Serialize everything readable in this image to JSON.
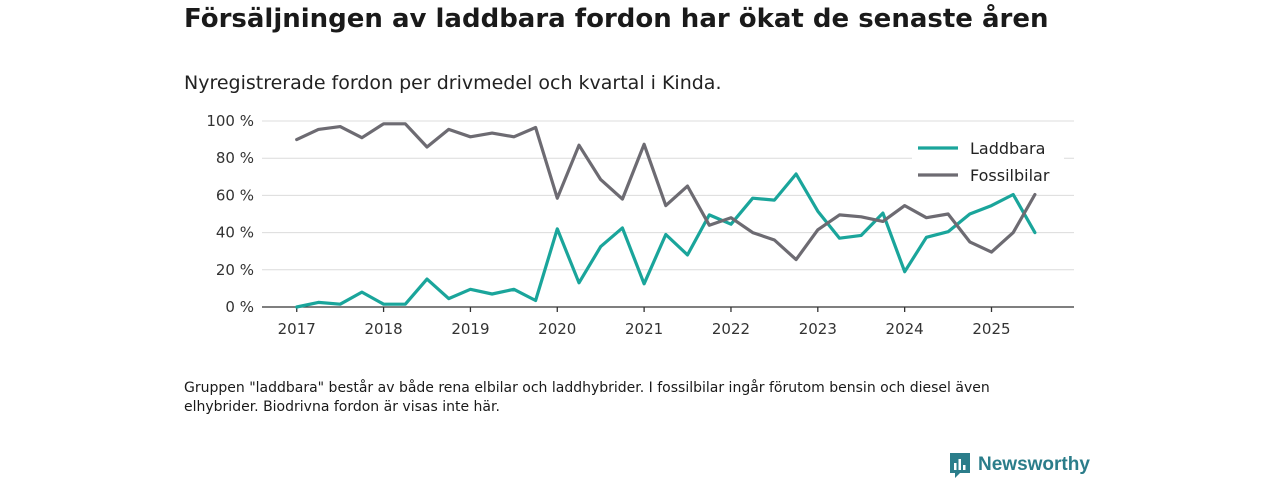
{
  "title": "Försäljningen av laddbara fordon har ökat de senaste åren",
  "subtitle": "Nyregistrerade fordon per drivmedel och kvartal i Kinda.",
  "note": "Gruppen \"laddbara\" består av både rena elbilar och laddhybrider. I fossilbilar ingår förutom bensin och diesel även elhybrider. Biodrivna fordon är visas inte här.",
  "brand": "Newsworthy",
  "chart_data": {
    "type": "line",
    "title": "Försäljningen av laddbara fordon har ökat de senaste åren",
    "subtitle": "Nyregistrerade fordon per drivmedel och kvartal i Kinda.",
    "xlabel": "",
    "ylabel": "",
    "ylim": [
      0,
      100
    ],
    "yticks": [
      0,
      20,
      40,
      60,
      80,
      100
    ],
    "ytick_labels": [
      "0 %",
      "20 %",
      "40 %",
      "60 %",
      "80 %",
      "100 %"
    ],
    "xlim": [
      2016.6,
      2025.95
    ],
    "xticks": [
      2017,
      2018,
      2019,
      2020,
      2021,
      2022,
      2023,
      2024,
      2025
    ],
    "xtick_labels": [
      "2017",
      "2018",
      "2019",
      "2020",
      "2021",
      "2022",
      "2023",
      "2024",
      "2025"
    ],
    "grid": "horizontal",
    "legend_position": "top-right",
    "x": [
      2017,
      2017.25,
      2017.5,
      2017.75,
      2018,
      2018.25,
      2018.5,
      2018.75,
      2019,
      2019.25,
      2019.5,
      2019.75,
      2020,
      2020.25,
      2020.5,
      2020.75,
      2021,
      2021.25,
      2021.5,
      2021.75,
      2022,
      2022.25,
      2022.5,
      2022.75,
      2023,
      2023.25,
      2023.5,
      2023.75,
      2024,
      2024.25,
      2024.5,
      2024.75,
      2025,
      2025.25,
      2025.5
    ],
    "series": [
      {
        "name": "Laddbara",
        "color": "#1aa59b",
        "values": [
          0,
          2.5,
          1.5,
          8,
          1.5,
          1.5,
          15,
          4.5,
          9.5,
          7,
          9.5,
          3.5,
          42,
          13,
          32.5,
          42.5,
          12.5,
          39,
          28,
          49.5,
          44.5,
          58.5,
          57.5,
          71.5,
          51.5,
          37,
          38.5,
          50.5,
          19,
          37.5,
          40.5,
          50,
          54.5,
          60.5,
          40
        ]
      },
      {
        "name": "Fossilbilar",
        "color": "#6d6b72",
        "values": [
          90,
          95.5,
          97,
          91,
          98.5,
          98.5,
          86,
          95.5,
          91.5,
          93.5,
          91.5,
          96.5,
          58.5,
          87,
          68.5,
          58,
          87.5,
          54.5,
          65,
          44,
          48,
          40,
          36,
          25.5,
          41.5,
          49.5,
          48.5,
          46,
          54.5,
          48,
          50,
          35,
          29.5,
          40,
          60.5
        ]
      }
    ]
  }
}
